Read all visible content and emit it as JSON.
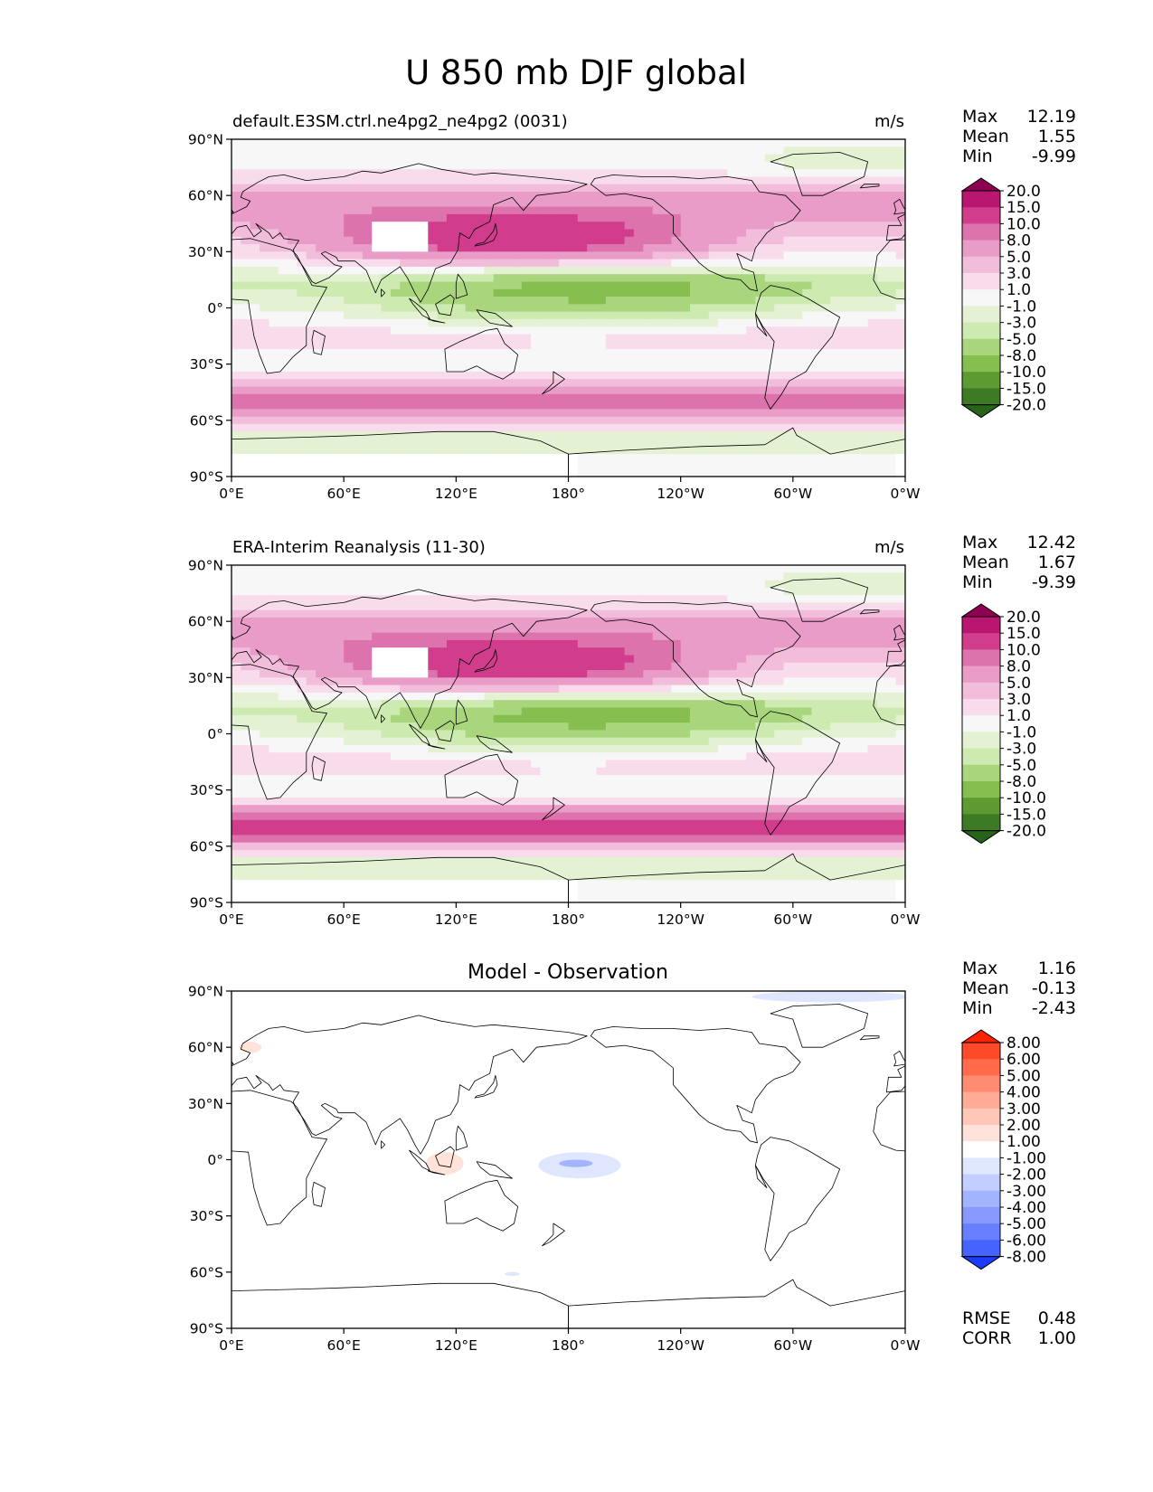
{
  "title": "U 850 mb DJF global",
  "axes": {
    "lat_labels": [
      "90°N",
      "60°N",
      "30°N",
      "0°",
      "30°S",
      "60°S",
      "90°S"
    ],
    "lon_labels": [
      "0°E",
      "60°E",
      "120°E",
      "180°",
      "120°W",
      "60°W",
      "0°W"
    ]
  },
  "panels": [
    {
      "id": "model",
      "title_left": "default.E3SM.ctrl.ne4pg2_ne4pg2 (0031)",
      "title_center": "",
      "units": "m/s",
      "stats": [
        {
          "label": "Max",
          "value": "12.19"
        },
        {
          "label": "Mean",
          "value": "1.55"
        },
        {
          "label": "Min",
          "value": "-9.99"
        }
      ],
      "colorbar": {
        "levels": [
          "20.0",
          "15.0",
          "10.0",
          "8.0",
          "5.0",
          "3.0",
          "1.0",
          "-1.0",
          "-3.0",
          "-5.0",
          "-8.0",
          "-10.0",
          "-15.0",
          "-20.0"
        ],
        "colors": [
          "#8e0152",
          "#b9176f",
          "#d23c8d",
          "#dd73ad",
          "#e99cc7",
          "#f2bddb",
          "#f8dcec",
          "#f7f7f7",
          "#e4f2d3",
          "#cdeab0",
          "#a9d67c",
          "#86bf4f",
          "#5d9b32",
          "#3d7a24",
          "#276419"
        ]
      },
      "wind": {
        "jet_nh": 12,
        "jet_sh": 10,
        "trade": -8
      }
    },
    {
      "id": "obs",
      "title_left": "ERA-Interim Reanalysis (11-30)",
      "title_center": "",
      "units": "m/s",
      "stats": [
        {
          "label": "Max",
          "value": "12.42"
        },
        {
          "label": "Mean",
          "value": "1.67"
        },
        {
          "label": "Min",
          "value": "-9.39"
        }
      ],
      "colorbar": {
        "levels": [
          "20.0",
          "15.0",
          "10.0",
          "8.0",
          "5.0",
          "3.0",
          "1.0",
          "-1.0",
          "-3.0",
          "-5.0",
          "-8.0",
          "-10.0",
          "-15.0",
          "-20.0"
        ],
        "colors": [
          "#8e0152",
          "#b9176f",
          "#d23c8d",
          "#dd73ad",
          "#e99cc7",
          "#f2bddb",
          "#f8dcec",
          "#f7f7f7",
          "#e4f2d3",
          "#cdeab0",
          "#a9d67c",
          "#86bf4f",
          "#5d9b32",
          "#3d7a24",
          "#276419"
        ]
      },
      "wind": {
        "jet_nh": 12,
        "jet_sh": 11,
        "trade": -8
      }
    },
    {
      "id": "diff",
      "title_left": "",
      "title_center": "Model - Observation",
      "units": "",
      "stats": [
        {
          "label": "Max",
          "value": "1.16"
        },
        {
          "label": "Mean",
          "value": "-0.13"
        },
        {
          "label": "Min",
          "value": "-2.43"
        }
      ],
      "colorbar": {
        "levels": [
          "8.00",
          "6.00",
          "5.00",
          "4.00",
          "3.00",
          "2.00",
          "1.00",
          "-1.00",
          "-2.00",
          "-3.00",
          "-4.00",
          "-5.00",
          "-6.00",
          "-8.00"
        ],
        "colors": [
          "#ff2200",
          "#ff4a2a",
          "#ff6b4b",
          "#ff8b70",
          "#ffab96",
          "#ffc7b8",
          "#ffe3da",
          "#ffffff",
          "#dfe6ff",
          "#c2ceff",
          "#a3b4ff",
          "#8599ff",
          "#6680ff",
          "#4564ff",
          "#1e3cff"
        ]
      },
      "extra_stats": [
        {
          "label": "RMSE",
          "value": "0.48"
        },
        {
          "label": "CORR",
          "value": "1.00"
        }
      ]
    }
  ],
  "colors": {
    "map_missing": "#ffffff",
    "coastline": "#000000"
  }
}
